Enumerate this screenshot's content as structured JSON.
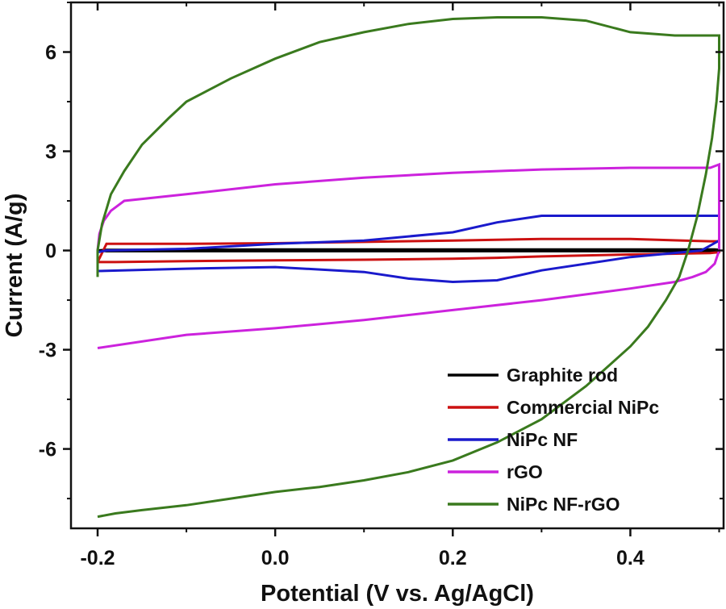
{
  "chart_data": {
    "type": "line",
    "title": "",
    "xlabel": "Potential (V vs. Ag/AgCl)",
    "ylabel": "Current (A/g)",
    "xlim": [
      -0.23,
      0.505
    ],
    "ylim": [
      -8.4,
      7.5
    ],
    "xticks": [
      -0.2,
      0.0,
      0.2,
      0.4
    ],
    "xtick_labels": [
      "-0.2",
      "0.0",
      "0.2",
      "0.4"
    ],
    "yticks": [
      -6,
      -3,
      0,
      3,
      6
    ],
    "ytick_labels": [
      "-6",
      "-3",
      "0",
      "3",
      "6"
    ],
    "grid": false,
    "legend_position": "bottom-right",
    "series": [
      {
        "name": "Graphite rod",
        "color": "#000000",
        "x": [
          -0.2,
          -0.19,
          0.0,
          0.2,
          0.4,
          0.495,
          0.5,
          0.5,
          0.495,
          0.4,
          0.2,
          0.0,
          -0.19,
          -0.2
        ],
        "y": [
          0.0,
          0.02,
          0.03,
          0.03,
          0.03,
          0.03,
          0.02,
          -0.01,
          -0.02,
          -0.02,
          -0.02,
          -0.02,
          -0.02,
          0.0
        ]
      },
      {
        "name": "Commercial NiPc",
        "color": "#cc1111",
        "x": [
          -0.2,
          -0.19,
          -0.1,
          0.0,
          0.1,
          0.2,
          0.3,
          0.4,
          0.46,
          0.49,
          0.5,
          0.5,
          0.49,
          0.4,
          0.3,
          0.25,
          0.2,
          0.1,
          0.0,
          -0.1,
          -0.18,
          -0.2
        ],
        "y": [
          -0.35,
          0.2,
          0.2,
          0.22,
          0.26,
          0.3,
          0.35,
          0.35,
          0.3,
          0.28,
          0.28,
          -0.05,
          -0.08,
          -0.12,
          -0.18,
          -0.22,
          -0.25,
          -0.28,
          -0.3,
          -0.32,
          -0.35,
          -0.35
        ]
      },
      {
        "name": "NiPc NF",
        "color": "#1a1acc",
        "x": [
          -0.2,
          -0.19,
          -0.1,
          0.0,
          0.1,
          0.2,
          0.25,
          0.3,
          0.35,
          0.4,
          0.45,
          0.49,
          0.5,
          0.5,
          0.48,
          0.4,
          0.3,
          0.25,
          0.2,
          0.15,
          0.1,
          0.0,
          -0.1,
          -0.2
        ],
        "y": [
          -0.05,
          0.0,
          0.05,
          0.2,
          0.3,
          0.55,
          0.85,
          1.05,
          1.05,
          1.05,
          1.05,
          1.05,
          1.05,
          0.3,
          0.0,
          -0.2,
          -0.6,
          -0.9,
          -0.95,
          -0.85,
          -0.65,
          -0.5,
          -0.55,
          -0.62
        ]
      },
      {
        "name": "rGO",
        "color": "#cc22dd",
        "x": [
          -0.2,
          -0.198,
          -0.193,
          -0.185,
          -0.17,
          -0.1,
          0.0,
          0.1,
          0.2,
          0.3,
          0.4,
          0.45,
          0.49,
          0.5,
          0.5,
          0.495,
          0.485,
          0.47,
          0.45,
          0.4,
          0.3,
          0.2,
          0.1,
          0.0,
          -0.1,
          -0.2
        ],
        "y": [
          0.0,
          0.5,
          0.9,
          1.2,
          1.5,
          1.7,
          2.0,
          2.2,
          2.35,
          2.45,
          2.5,
          2.5,
          2.5,
          2.6,
          0.0,
          -0.4,
          -0.65,
          -0.8,
          -0.95,
          -1.15,
          -1.5,
          -1.8,
          -2.1,
          -2.35,
          -2.55,
          -2.95
        ]
      },
      {
        "name": "NiPc NF-rGO",
        "color": "#3a7a1e",
        "x": [
          -0.2,
          -0.2,
          -0.195,
          -0.185,
          -0.17,
          -0.15,
          -0.12,
          -0.1,
          -0.05,
          0.0,
          0.05,
          0.1,
          0.15,
          0.2,
          0.25,
          0.3,
          0.35,
          0.4,
          0.45,
          0.485,
          0.5,
          0.5,
          0.497,
          0.492,
          0.485,
          0.475,
          0.465,
          0.455,
          0.44,
          0.42,
          0.4,
          0.35,
          0.3,
          0.25,
          0.2,
          0.15,
          0.1,
          0.05,
          0.0,
          -0.05,
          -0.1,
          -0.15,
          -0.18,
          -0.2,
          -0.2
        ],
        "y": [
          -0.8,
          0.0,
          0.8,
          1.7,
          2.4,
          3.2,
          4.0,
          4.5,
          5.2,
          5.8,
          6.3,
          6.6,
          6.85,
          7.0,
          7.05,
          7.05,
          6.95,
          6.6,
          6.5,
          6.5,
          6.5,
          5.5,
          4.5,
          3.4,
          2.3,
          1.0,
          0.0,
          -0.8,
          -1.5,
          -2.3,
          -2.9,
          -4.1,
          -5.1,
          -5.8,
          -6.35,
          -6.7,
          -6.95,
          -7.15,
          -7.3,
          -7.5,
          -7.7,
          -7.85,
          -7.95,
          -8.05,
          -8.05
        ]
      }
    ]
  }
}
